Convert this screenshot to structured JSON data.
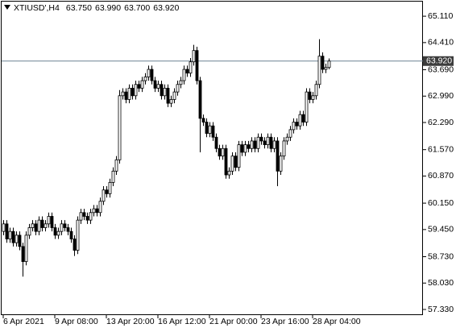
{
  "chart_data": {
    "type": "candlestick",
    "title": "XTIUSD',H4",
    "header_values": [
      "63.750",
      "63.990",
      "63.700",
      "63.920"
    ],
    "categories": [
      "6 Apr 2021",
      null,
      null,
      null,
      null,
      null,
      null,
      null,
      null,
      null,
      null,
      null,
      null,
      null,
      null,
      null,
      "9 Apr 08:00",
      null,
      null,
      null,
      null,
      null,
      null,
      null,
      null,
      null,
      null,
      null,
      null,
      null,
      null,
      null,
      "13 Apr 20:00",
      null,
      null,
      null,
      null,
      null,
      null,
      null,
      null,
      null,
      null,
      null,
      null,
      null,
      null,
      null,
      "16 Apr 12:00",
      null,
      null,
      null,
      null,
      null,
      null,
      null,
      null,
      null,
      null,
      null,
      null,
      null,
      null,
      null,
      "21 Apr 00:00",
      null,
      null,
      null,
      null,
      null,
      null,
      null,
      null,
      null,
      null,
      null,
      null,
      null,
      null,
      null,
      "23 Apr 16:00",
      null,
      null,
      null,
      null,
      null,
      null,
      null,
      null,
      null,
      null,
      null,
      null,
      null,
      null,
      null,
      "28 Apr 04:00",
      null,
      null,
      null,
      null,
      null
    ],
    "open": [
      59.4,
      59.6,
      59.2,
      59.4,
      59.1,
      59.3,
      59.0,
      58.6,
      59.3,
      59.5,
      59.6,
      59.4,
      59.7,
      59.5,
      59.6,
      59.8,
      59.5,
      59.3,
      59.4,
      59.6,
      59.5,
      59.4,
      59.2,
      58.9,
      59.7,
      59.9,
      59.8,
      59.7,
      59.9,
      60.0,
      59.9,
      60.2,
      60.5,
      60.4,
      60.7,
      61.0,
      61.3,
      63.0,
      63.1,
      62.9,
      63.2,
      63.0,
      63.3,
      63.2,
      63.4,
      63.5,
      63.7,
      63.4,
      63.2,
      63.3,
      63.0,
      63.2,
      62.8,
      62.9,
      63.1,
      63.3,
      63.4,
      63.7,
      63.6,
      63.9,
      64.2,
      63.4,
      62.4,
      62.3,
      62.0,
      62.2,
      61.9,
      61.6,
      61.4,
      61.6,
      60.9,
      61.0,
      61.4,
      61.1,
      61.7,
      61.5,
      61.7,
      61.6,
      61.8,
      61.6,
      61.9,
      61.8,
      61.7,
      61.9,
      61.6,
      61.8,
      61.0,
      61.4,
      61.8,
      61.9,
      62.1,
      62.3,
      62.2,
      62.5,
      62.3,
      63.1,
      62.9,
      63.0,
      63.3,
      64.05,
      63.7,
      63.75
    ],
    "high": [
      59.7,
      59.7,
      59.5,
      59.5,
      59.4,
      59.4,
      59.1,
      59.4,
      59.6,
      59.7,
      59.7,
      59.8,
      59.8,
      59.7,
      59.9,
      59.9,
      59.6,
      59.5,
      59.7,
      59.7,
      59.6,
      59.5,
      59.3,
      59.8,
      60.0,
      60.0,
      59.9,
      60.0,
      60.1,
      60.1,
      60.3,
      60.6,
      60.6,
      60.8,
      61.1,
      61.4,
      63.15,
      63.2,
      63.2,
      63.3,
      63.3,
      63.4,
      63.4,
      63.5,
      63.6,
      63.8,
      63.8,
      63.5,
      63.4,
      63.4,
      63.3,
      63.3,
      63.0,
      63.2,
      63.4,
      63.5,
      63.8,
      63.8,
      64.0,
      64.35,
      64.3,
      63.5,
      62.5,
      62.4,
      62.3,
      62.3,
      62.0,
      61.7,
      61.7,
      61.7,
      61.1,
      61.5,
      61.5,
      61.8,
      61.8,
      61.8,
      61.8,
      61.9,
      61.9,
      62.0,
      62.0,
      61.9,
      62.0,
      62.0,
      61.9,
      61.9,
      61.5,
      61.9,
      62.0,
      62.2,
      62.4,
      62.4,
      62.6,
      62.6,
      63.2,
      63.2,
      63.1,
      63.4,
      64.5,
      64.15,
      63.85,
      63.99
    ],
    "low": [
      59.3,
      59.1,
      59.1,
      59.0,
      59.0,
      58.9,
      58.2,
      58.5,
      59.2,
      59.4,
      59.3,
      59.3,
      59.4,
      59.4,
      59.5,
      59.4,
      59.2,
      59.2,
      59.3,
      59.4,
      59.3,
      59.1,
      58.75,
      58.8,
      59.6,
      59.7,
      59.6,
      59.6,
      59.8,
      59.8,
      59.8,
      60.1,
      60.3,
      60.3,
      60.6,
      60.9,
      61.2,
      62.9,
      62.8,
      62.8,
      62.9,
      62.9,
      63.1,
      63.1,
      63.3,
      63.4,
      63.3,
      63.1,
      63.1,
      62.9,
      62.9,
      62.7,
      62.7,
      62.8,
      63.0,
      63.2,
      63.3,
      63.5,
      63.5,
      63.8,
      63.3,
      61.5,
      62.2,
      61.9,
      61.9,
      61.8,
      61.5,
      61.3,
      61.3,
      60.8,
      60.8,
      60.9,
      61.0,
      61.0,
      61.4,
      61.4,
      61.5,
      61.5,
      61.5,
      61.5,
      61.7,
      61.6,
      61.6,
      61.5,
      61.5,
      60.6,
      60.9,
      61.3,
      61.7,
      61.8,
      62.0,
      62.1,
      62.1,
      62.2,
      62.2,
      62.8,
      62.8,
      62.9,
      63.2,
      63.6,
      63.6,
      63.7
    ],
    "close": [
      59.6,
      59.2,
      59.4,
      59.1,
      59.3,
      59.0,
      58.6,
      59.3,
      59.5,
      59.6,
      59.4,
      59.7,
      59.5,
      59.6,
      59.8,
      59.5,
      59.3,
      59.4,
      59.6,
      59.5,
      59.4,
      59.2,
      58.9,
      59.7,
      59.9,
      59.8,
      59.7,
      59.9,
      60.0,
      59.9,
      60.2,
      60.5,
      60.4,
      60.7,
      61.0,
      61.3,
      63.0,
      63.1,
      62.9,
      63.2,
      63.0,
      63.3,
      63.2,
      63.4,
      63.5,
      63.7,
      63.4,
      63.2,
      63.3,
      63.0,
      63.2,
      62.8,
      62.9,
      63.1,
      63.3,
      63.4,
      63.7,
      63.6,
      63.9,
      64.2,
      63.4,
      62.4,
      62.3,
      62.0,
      62.2,
      61.9,
      61.6,
      61.4,
      61.6,
      60.9,
      61.0,
      61.4,
      61.1,
      61.7,
      61.5,
      61.7,
      61.6,
      61.8,
      61.6,
      61.9,
      61.8,
      61.7,
      61.9,
      61.6,
      61.8,
      61.0,
      61.4,
      61.8,
      61.9,
      62.1,
      62.3,
      62.2,
      62.5,
      62.3,
      63.1,
      62.9,
      63.0,
      63.3,
      64.05,
      63.7,
      63.75,
      63.92
    ],
    "up_color": "#ffffff",
    "down_color": "#000000",
    "wick_color": "#000000",
    "last_price": {
      "value": 63.92,
      "label": "63.920"
    },
    "last_price_color": "#6d8294",
    "ylim": [
      57.18,
      65.54
    ],
    "yticks": [
      {
        "value": 65.11,
        "label": "65.110"
      },
      {
        "value": 64.41,
        "label": "64.410"
      },
      {
        "value": 63.69,
        "label": "63.690"
      },
      {
        "value": 62.99,
        "label": "62.990"
      },
      {
        "value": 62.29,
        "label": "62.290"
      },
      {
        "value": 61.57,
        "label": "61.570"
      },
      {
        "value": 60.87,
        "label": "60.870"
      },
      {
        "value": 60.15,
        "label": "60.150"
      },
      {
        "value": 59.45,
        "label": "59.450"
      },
      {
        "value": 58.73,
        "label": "58.730"
      },
      {
        "value": 58.03,
        "label": "58.030"
      },
      {
        "value": 57.33,
        "label": "57.330"
      }
    ],
    "grid": false
  }
}
